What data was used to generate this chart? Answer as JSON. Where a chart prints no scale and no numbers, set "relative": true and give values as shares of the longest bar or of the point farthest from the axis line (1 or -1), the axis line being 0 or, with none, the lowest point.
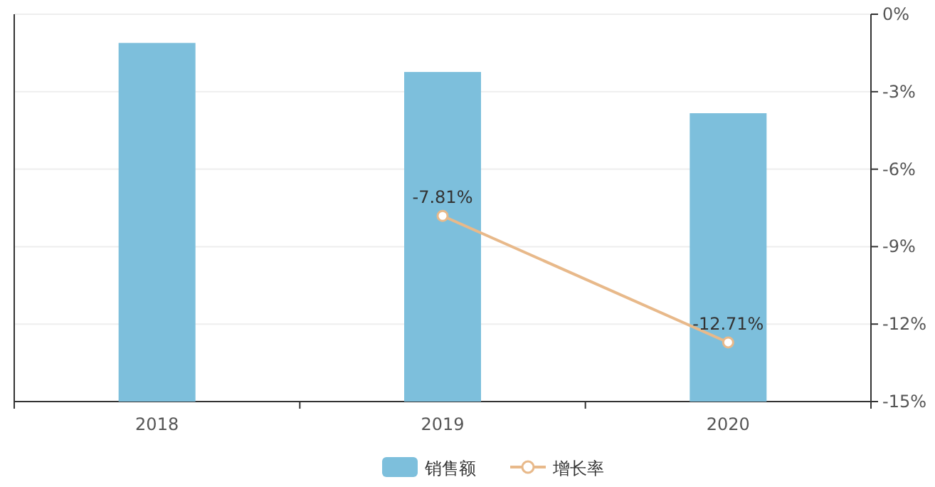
{
  "chart_data": [
    {
      "type": "bar",
      "relative": true,
      "categories": [
        "2018",
        "2019",
        "2020"
      ],
      "tick_labels": false,
      "legend": "bottom",
      "series": [
        {
          "name": "销售额",
          "color": "#7dbfdc",
          "values": [
            1,
            0.919,
            0.804
          ]
        }
      ]
    },
    {
      "type": "line",
      "categories": [
        "2018",
        "2019",
        "2020"
      ],
      "marker": "circle",
      "legend": "bottom",
      "grid": "y2",
      "series": [
        {
          "name": "增长率",
          "axis": "y2",
          "color": "#e8b98a",
          "values": [
            null,
            -7.81,
            -12.71
          ],
          "value_labels": [
            null,
            "-7.81%",
            "-12.71%"
          ]
        }
      ],
      "y2lim": [
        -15,
        0
      ],
      "y2ticks": [
        {
          "value": 0,
          "label": "0%"
        },
        {
          "value": -3,
          "label": "-3%"
        },
        {
          "value": -6,
          "label": "-6%"
        },
        {
          "value": -9,
          "label": "-9%"
        },
        {
          "value": -12,
          "label": "-12%"
        },
        {
          "value": -15,
          "label": "-15%"
        }
      ]
    }
  ]
}
